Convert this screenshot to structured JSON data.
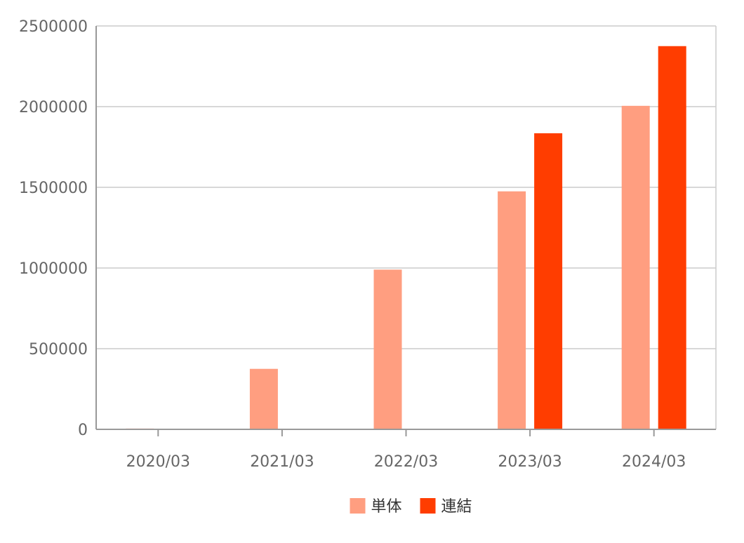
{
  "chart_data": {
    "type": "bar",
    "categories": [
      "2020/03",
      "2021/03",
      "2022/03",
      "2023/03",
      "2024/03"
    ],
    "series": [
      {
        "name": "単体",
        "color": "#FF9E80",
        "values": [
          5000,
          375000,
          990000,
          1475000,
          2005000
        ]
      },
      {
        "name": "連結",
        "color": "#FF3D00",
        "values": [
          0,
          0,
          0,
          1835000,
          2375000
        ]
      }
    ],
    "ylim": [
      0,
      2500000
    ],
    "yticks": [
      0,
      500000,
      1000000,
      1500000,
      2000000,
      2500000
    ],
    "grid": true,
    "legend_position": "bottom",
    "axis_color": "#999999",
    "grid_color": "#cccccc"
  }
}
